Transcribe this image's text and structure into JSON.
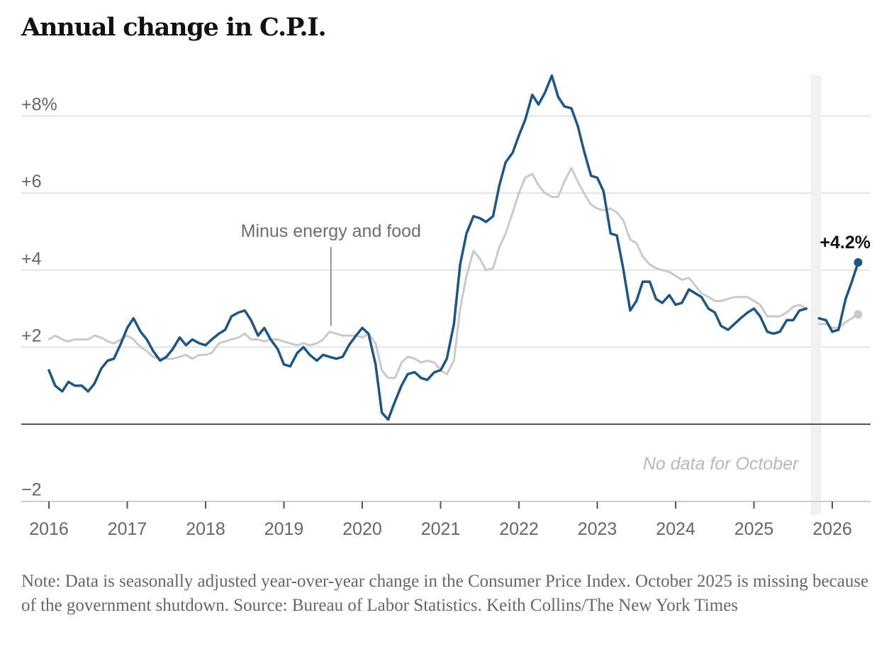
{
  "title": "Annual change in C.P.I.",
  "note": "Note: Data is seasonally adjusted year-over-year change in the Consumer Price Index. October 2025 is missing because of the government shutdown.  Source: Bureau of Labor Statistics.  Keith Collins/The New York Times",
  "chart_data": {
    "type": "line",
    "title": "Annual change in C.P.I.",
    "xlabel": "",
    "ylabel": "",
    "xlim": [
      2016,
      2026.55
    ],
    "ylim": [
      -2,
      9
    ],
    "x_ticks": [
      {
        "value": 2016,
        "label": "2016"
      },
      {
        "value": 2017,
        "label": "2017"
      },
      {
        "value": 2018,
        "label": "2018"
      },
      {
        "value": 2019,
        "label": "2019"
      },
      {
        "value": 2020,
        "label": "2020"
      },
      {
        "value": 2021,
        "label": "2021"
      },
      {
        "value": 2022,
        "label": "2022"
      },
      {
        "value": 2023,
        "label": "2023"
      },
      {
        "value": 2024,
        "label": "2024"
      },
      {
        "value": 2025,
        "label": "2025"
      },
      {
        "value": 2026,
        "label": "2026"
      }
    ],
    "y_ticks": [
      {
        "value": 8,
        "label": "+8%"
      },
      {
        "value": 6,
        "label": "+6"
      },
      {
        "value": 4,
        "label": "+4"
      },
      {
        "value": 2,
        "label": "+2"
      },
      {
        "value": -2,
        "label": "−2"
      }
    ],
    "grid": true,
    "zero_line": 0,
    "gap_band": {
      "x0": 2025.75,
      "x1": 2025.83,
      "label": "No data for October"
    },
    "end_label": "+4.2%",
    "series": [
      {
        "name": "",
        "color": "#1f5582",
        "points": [
          [
            2016.0,
            1.4
          ],
          [
            2016.08,
            1.0
          ],
          [
            2016.17,
            0.85
          ],
          [
            2016.25,
            1.1
          ],
          [
            2016.33,
            1.0
          ],
          [
            2016.42,
            1.0
          ],
          [
            2016.5,
            0.85
          ],
          [
            2016.58,
            1.05
          ],
          [
            2016.67,
            1.45
          ],
          [
            2016.75,
            1.65
          ],
          [
            2016.83,
            1.7
          ],
          [
            2016.92,
            2.1
          ],
          [
            2017.0,
            2.5
          ],
          [
            2017.08,
            2.75
          ],
          [
            2017.17,
            2.4
          ],
          [
            2017.25,
            2.2
          ],
          [
            2017.33,
            1.9
          ],
          [
            2017.42,
            1.65
          ],
          [
            2017.5,
            1.75
          ],
          [
            2017.58,
            1.95
          ],
          [
            2017.67,
            2.25
          ],
          [
            2017.75,
            2.05
          ],
          [
            2017.83,
            2.2
          ],
          [
            2017.92,
            2.1
          ],
          [
            2018.0,
            2.05
          ],
          [
            2018.08,
            2.2
          ],
          [
            2018.17,
            2.35
          ],
          [
            2018.25,
            2.45
          ],
          [
            2018.33,
            2.8
          ],
          [
            2018.42,
            2.9
          ],
          [
            2018.5,
            2.95
          ],
          [
            2018.58,
            2.7
          ],
          [
            2018.67,
            2.3
          ],
          [
            2018.75,
            2.5
          ],
          [
            2018.83,
            2.2
          ],
          [
            2018.92,
            1.95
          ],
          [
            2019.0,
            1.55
          ],
          [
            2019.08,
            1.5
          ],
          [
            2019.17,
            1.85
          ],
          [
            2019.25,
            2.0
          ],
          [
            2019.33,
            1.8
          ],
          [
            2019.42,
            1.65
          ],
          [
            2019.5,
            1.8
          ],
          [
            2019.58,
            1.75
          ],
          [
            2019.67,
            1.7
          ],
          [
            2019.75,
            1.75
          ],
          [
            2019.83,
            2.05
          ],
          [
            2019.92,
            2.3
          ],
          [
            2020.0,
            2.5
          ],
          [
            2020.08,
            2.35
          ],
          [
            2020.17,
            1.55
          ],
          [
            2020.25,
            0.3
          ],
          [
            2020.33,
            0.12
          ],
          [
            2020.42,
            0.6
          ],
          [
            2020.5,
            1.0
          ],
          [
            2020.58,
            1.3
          ],
          [
            2020.67,
            1.35
          ],
          [
            2020.75,
            1.2
          ],
          [
            2020.83,
            1.15
          ],
          [
            2020.92,
            1.35
          ],
          [
            2021.0,
            1.4
          ],
          [
            2021.08,
            1.7
          ],
          [
            2021.17,
            2.6
          ],
          [
            2021.25,
            4.15
          ],
          [
            2021.33,
            4.95
          ],
          [
            2021.42,
            5.4
          ],
          [
            2021.5,
            5.35
          ],
          [
            2021.58,
            5.25
          ],
          [
            2021.67,
            5.4
          ],
          [
            2021.75,
            6.2
          ],
          [
            2021.83,
            6.8
          ],
          [
            2021.92,
            7.05
          ],
          [
            2022.0,
            7.5
          ],
          [
            2022.08,
            7.9
          ],
          [
            2022.17,
            8.55
          ],
          [
            2022.25,
            8.3
          ],
          [
            2022.33,
            8.6
          ],
          [
            2022.42,
            9.05
          ],
          [
            2022.5,
            8.5
          ],
          [
            2022.58,
            8.25
          ],
          [
            2022.67,
            8.2
          ],
          [
            2022.75,
            7.75
          ],
          [
            2022.83,
            7.1
          ],
          [
            2022.92,
            6.45
          ],
          [
            2023.0,
            6.4
          ],
          [
            2023.08,
            6.05
          ],
          [
            2023.17,
            4.95
          ],
          [
            2023.25,
            4.9
          ],
          [
            2023.33,
            4.05
          ],
          [
            2023.42,
            2.95
          ],
          [
            2023.5,
            3.2
          ],
          [
            2023.58,
            3.7
          ],
          [
            2023.67,
            3.7
          ],
          [
            2023.75,
            3.25
          ],
          [
            2023.83,
            3.15
          ],
          [
            2023.92,
            3.35
          ],
          [
            2024.0,
            3.1
          ],
          [
            2024.08,
            3.15
          ],
          [
            2024.17,
            3.5
          ],
          [
            2024.25,
            3.4
          ],
          [
            2024.33,
            3.3
          ],
          [
            2024.42,
            3.0
          ],
          [
            2024.5,
            2.9
          ],
          [
            2024.58,
            2.55
          ],
          [
            2024.67,
            2.45
          ],
          [
            2024.75,
            2.6
          ],
          [
            2024.83,
            2.75
          ],
          [
            2024.92,
            2.9
          ],
          [
            2025.0,
            3.0
          ],
          [
            2025.08,
            2.8
          ],
          [
            2025.17,
            2.4
          ],
          [
            2025.25,
            2.35
          ],
          [
            2025.33,
            2.4
          ],
          [
            2025.42,
            2.7
          ],
          [
            2025.5,
            2.7
          ],
          [
            2025.58,
            2.95
          ],
          [
            2025.67,
            3.0
          ],
          null,
          [
            2025.83,
            2.75
          ],
          [
            2025.92,
            2.7
          ],
          [
            2026.0,
            2.4
          ],
          [
            2026.08,
            2.45
          ],
          [
            2026.17,
            3.25
          ],
          [
            2026.25,
            3.7
          ],
          [
            2026.33,
            4.2
          ]
        ]
      },
      {
        "name": "Minus energy and food",
        "color": "#c9c9c9",
        "points": [
          [
            2016.0,
            2.2
          ],
          [
            2016.08,
            2.3
          ],
          [
            2016.17,
            2.2
          ],
          [
            2016.25,
            2.15
          ],
          [
            2016.33,
            2.2
          ],
          [
            2016.42,
            2.2
          ],
          [
            2016.5,
            2.2
          ],
          [
            2016.58,
            2.3
          ],
          [
            2016.67,
            2.25
          ],
          [
            2016.75,
            2.15
          ],
          [
            2016.83,
            2.1
          ],
          [
            2016.92,
            2.2
          ],
          [
            2017.0,
            2.3
          ],
          [
            2017.08,
            2.2
          ],
          [
            2017.17,
            2.0
          ],
          [
            2017.25,
            1.9
          ],
          [
            2017.33,
            1.75
          ],
          [
            2017.42,
            1.7
          ],
          [
            2017.5,
            1.7
          ],
          [
            2017.58,
            1.7
          ],
          [
            2017.67,
            1.75
          ],
          [
            2017.75,
            1.8
          ],
          [
            2017.83,
            1.7
          ],
          [
            2017.92,
            1.8
          ],
          [
            2018.0,
            1.8
          ],
          [
            2018.08,
            1.85
          ],
          [
            2018.17,
            2.1
          ],
          [
            2018.25,
            2.15
          ],
          [
            2018.33,
            2.2
          ],
          [
            2018.42,
            2.25
          ],
          [
            2018.5,
            2.35
          ],
          [
            2018.58,
            2.2
          ],
          [
            2018.67,
            2.2
          ],
          [
            2018.75,
            2.15
          ],
          [
            2018.83,
            2.2
          ],
          [
            2018.92,
            2.2
          ],
          [
            2019.0,
            2.15
          ],
          [
            2019.08,
            2.1
          ],
          [
            2019.17,
            2.05
          ],
          [
            2019.25,
            2.1
          ],
          [
            2019.33,
            2.05
          ],
          [
            2019.42,
            2.1
          ],
          [
            2019.5,
            2.2
          ],
          [
            2019.58,
            2.4
          ],
          [
            2019.67,
            2.35
          ],
          [
            2019.75,
            2.3
          ],
          [
            2019.83,
            2.3
          ],
          [
            2019.92,
            2.3
          ],
          [
            2020.0,
            2.25
          ],
          [
            2020.08,
            2.35
          ],
          [
            2020.17,
            2.1
          ],
          [
            2020.25,
            1.4
          ],
          [
            2020.33,
            1.2
          ],
          [
            2020.42,
            1.2
          ],
          [
            2020.5,
            1.6
          ],
          [
            2020.58,
            1.75
          ],
          [
            2020.67,
            1.7
          ],
          [
            2020.75,
            1.6
          ],
          [
            2020.83,
            1.65
          ],
          [
            2020.92,
            1.6
          ],
          [
            2021.0,
            1.4
          ],
          [
            2021.08,
            1.3
          ],
          [
            2021.17,
            1.65
          ],
          [
            2021.25,
            3.0
          ],
          [
            2021.33,
            3.85
          ],
          [
            2021.42,
            4.5
          ],
          [
            2021.5,
            4.3
          ],
          [
            2021.58,
            4.0
          ],
          [
            2021.67,
            4.05
          ],
          [
            2021.75,
            4.6
          ],
          [
            2021.83,
            4.95
          ],
          [
            2021.92,
            5.5
          ],
          [
            2022.0,
            6.0
          ],
          [
            2022.08,
            6.4
          ],
          [
            2022.17,
            6.5
          ],
          [
            2022.25,
            6.2
          ],
          [
            2022.33,
            6.0
          ],
          [
            2022.42,
            5.9
          ],
          [
            2022.5,
            5.9
          ],
          [
            2022.58,
            6.3
          ],
          [
            2022.67,
            6.65
          ],
          [
            2022.75,
            6.3
          ],
          [
            2022.83,
            6.0
          ],
          [
            2022.92,
            5.7
          ],
          [
            2023.0,
            5.6
          ],
          [
            2023.08,
            5.55
          ],
          [
            2023.17,
            5.6
          ],
          [
            2023.25,
            5.5
          ],
          [
            2023.33,
            5.3
          ],
          [
            2023.42,
            4.8
          ],
          [
            2023.5,
            4.7
          ],
          [
            2023.58,
            4.35
          ],
          [
            2023.67,
            4.15
          ],
          [
            2023.75,
            4.05
          ],
          [
            2023.83,
            4.0
          ],
          [
            2023.92,
            3.95
          ],
          [
            2024.0,
            3.85
          ],
          [
            2024.08,
            3.75
          ],
          [
            2024.17,
            3.8
          ],
          [
            2024.25,
            3.6
          ],
          [
            2024.33,
            3.4
          ],
          [
            2024.42,
            3.3
          ],
          [
            2024.5,
            3.2
          ],
          [
            2024.58,
            3.2
          ],
          [
            2024.67,
            3.25
          ],
          [
            2024.75,
            3.3
          ],
          [
            2024.83,
            3.3
          ],
          [
            2024.92,
            3.3
          ],
          [
            2025.0,
            3.2
          ],
          [
            2025.08,
            3.1
          ],
          [
            2025.17,
            2.8
          ],
          [
            2025.25,
            2.8
          ],
          [
            2025.33,
            2.8
          ],
          [
            2025.42,
            2.9
          ],
          [
            2025.5,
            3.05
          ],
          [
            2025.58,
            3.1
          ],
          [
            2025.67,
            3.0
          ],
          null,
          [
            2025.83,
            2.6
          ],
          [
            2025.92,
            2.6
          ],
          [
            2026.0,
            2.5
          ],
          [
            2026.08,
            2.5
          ],
          [
            2026.17,
            2.65
          ],
          [
            2026.25,
            2.75
          ],
          [
            2026.33,
            2.85
          ]
        ]
      }
    ],
    "annotations": [
      {
        "text": "Minus energy and food",
        "x": 2019.6,
        "y": 2.4
      }
    ]
  }
}
